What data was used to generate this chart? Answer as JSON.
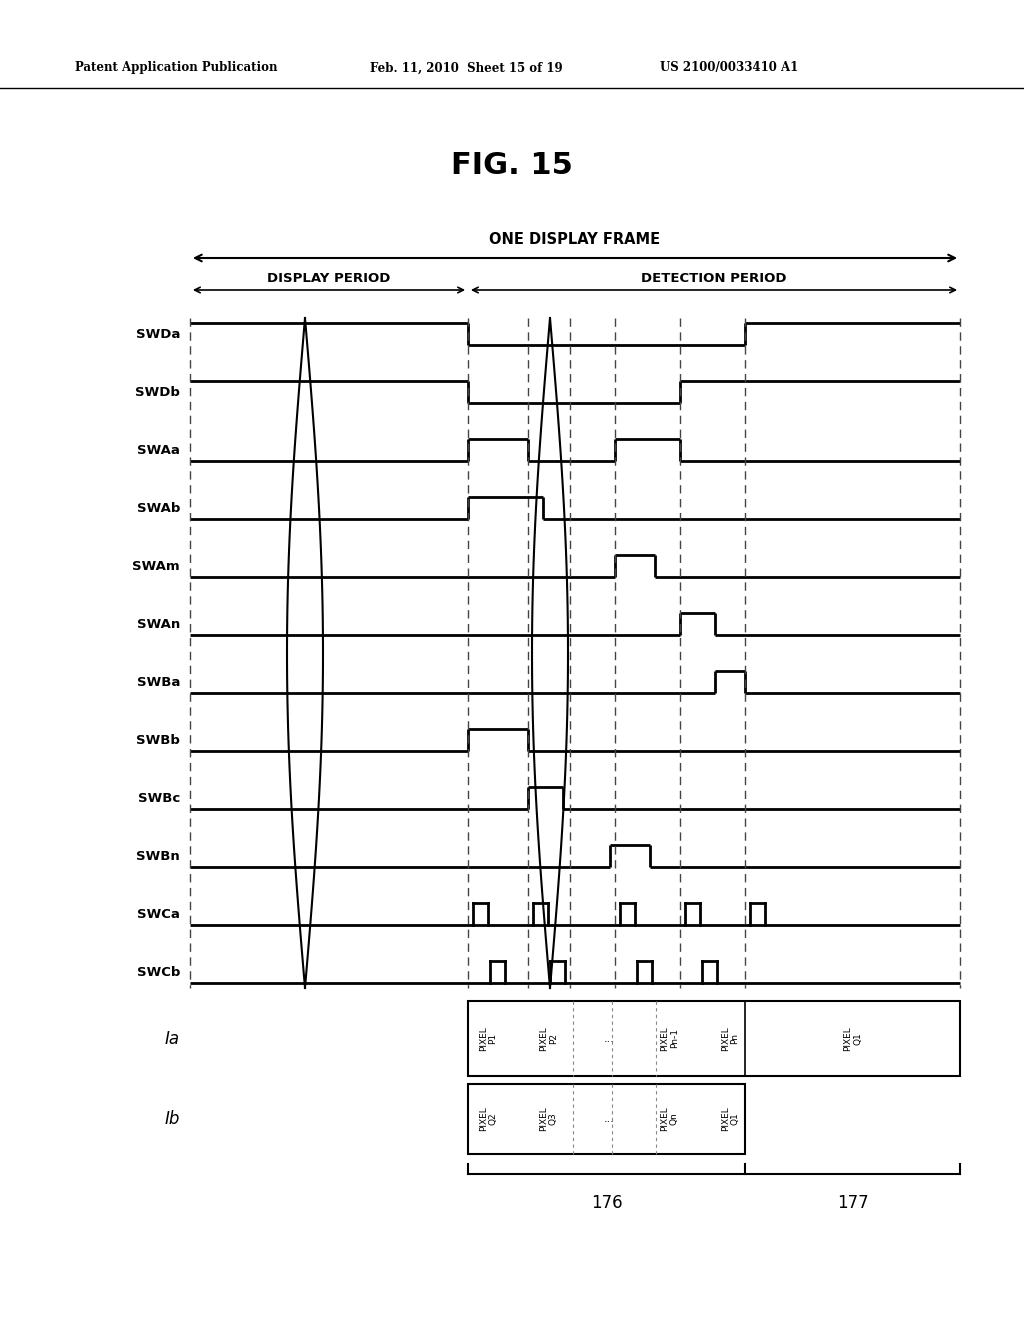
{
  "title": "FIG. 15",
  "header_left": "Patent Application Publication",
  "header_center": "Feb. 11, 2010  Sheet 15 of 19",
  "header_right": "US 2100/0033410 A1",
  "frame_label": "ONE DISPLAY FRAME",
  "display_period_label": "DISPLAY PERIOD",
  "detection_period_label": "DETECTION PERIOD",
  "signals": [
    "SWDa",
    "SWDb",
    "SWAa",
    "SWAb",
    "SWAm",
    "SWAn",
    "SWBa",
    "SWBb",
    "SWBc",
    "SWBn",
    "SWCa",
    "SWCb"
  ],
  "background_color": "#ffffff"
}
